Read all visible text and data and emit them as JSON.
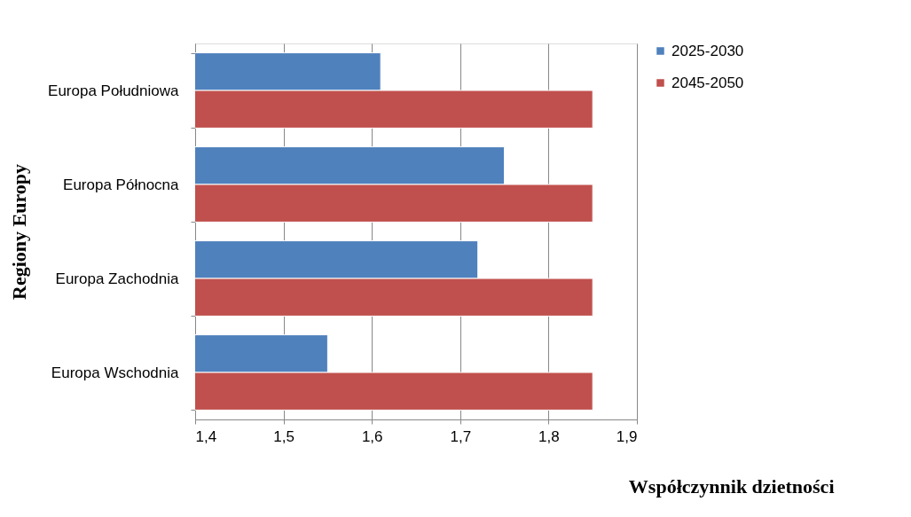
{
  "chart_data": {
    "type": "bar",
    "orientation": "horizontal",
    "xlabel": "Współczynnik dzietności",
    "ylabel": "Regiony Europy",
    "categories": [
      "Europa Południowa",
      "Europa Północna",
      "Europa Zachodnia",
      "Europa Wschodnia"
    ],
    "series": [
      {
        "name": "2025-2030",
        "color": "#4f81bd",
        "values": [
          1.61,
          1.75,
          1.72,
          1.55
        ]
      },
      {
        "name": "2045-2050",
        "color": "#c0504d",
        "values": [
          1.85,
          1.85,
          1.85,
          1.85
        ]
      }
    ],
    "xlim": [
      1.4,
      1.9
    ],
    "xticks": [
      {
        "value": 1.4,
        "label": "1,4"
      },
      {
        "value": 1.5,
        "label": "1,5"
      },
      {
        "value": 1.6,
        "label": "1,6"
      },
      {
        "value": 1.7,
        "label": "1,7"
      },
      {
        "value": 1.8,
        "label": "1,8"
      },
      {
        "value": 1.9,
        "label": "1,9"
      }
    ],
    "grid": "x",
    "legend": "right"
  }
}
